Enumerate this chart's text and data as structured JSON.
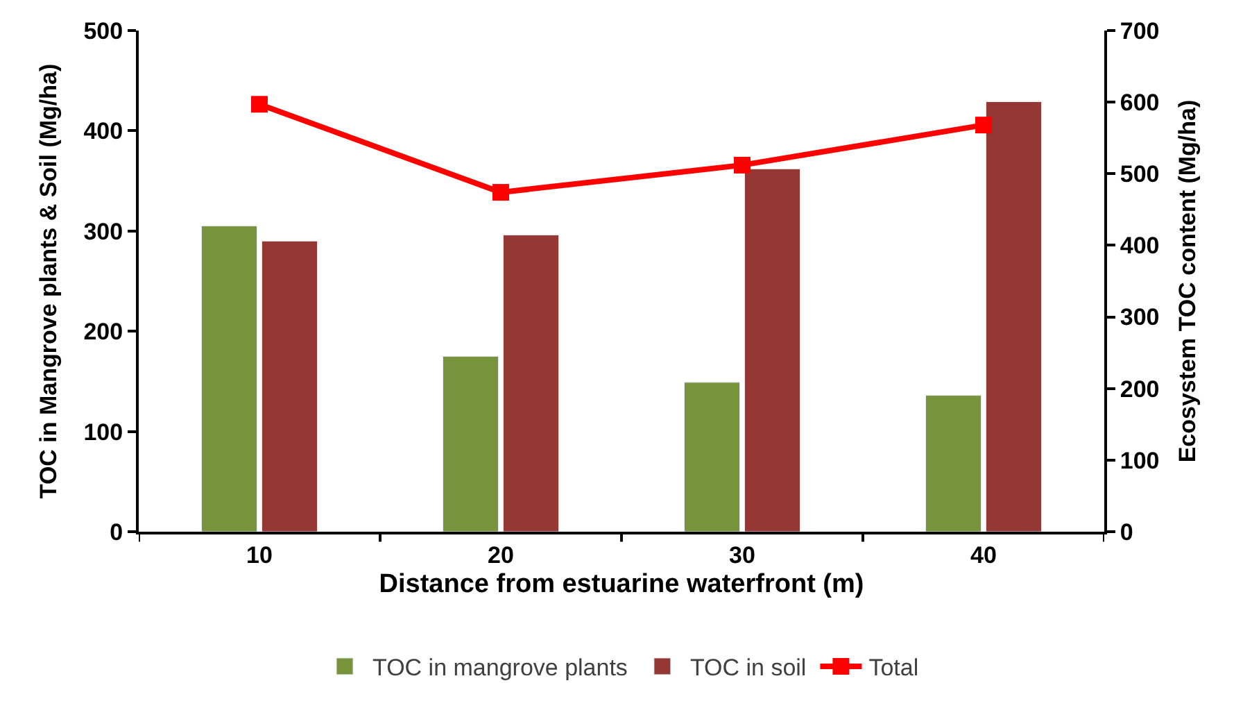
{
  "chart_data": {
    "type": "bar",
    "xlabel": "Distance from estuarine waterfront (m)",
    "ylabel": "TOC in Mangrove plants & Soil (Mg/ha)",
    "y2label": "Ecosystem TOC content (Mg/ha)",
    "categories": [
      "10",
      "20",
      "30",
      "40"
    ],
    "series": [
      {
        "name": "TOC in mangrove plants",
        "color": "#77933c",
        "values": [
          305,
          175,
          149,
          136
        ]
      },
      {
        "name": "TOC in soil",
        "color": "#953735",
        "values": [
          290,
          296,
          362,
          429
        ]
      },
      {
        "name": "Total",
        "color": "#ff0000",
        "type": "line",
        "axis": "y2",
        "marker": "square",
        "values": [
          597,
          474,
          512,
          568
        ]
      }
    ],
    "ylim": [
      0,
      500
    ],
    "yticks": [
      0,
      100,
      200,
      300,
      400,
      500
    ],
    "y2lim": [
      0,
      700
    ],
    "y2ticks": [
      0,
      100,
      200,
      300,
      400,
      500,
      600,
      700
    ],
    "legend": "bottom"
  }
}
